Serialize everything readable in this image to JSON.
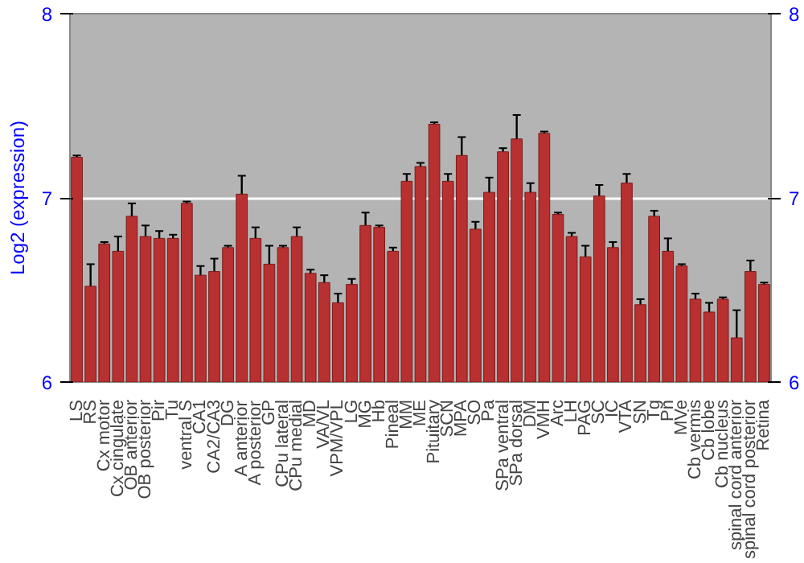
{
  "chart_data": {
    "type": "bar",
    "ylabel": "Log2 (expression)",
    "categories": [
      "LS",
      "RS",
      "Cx motor",
      "Cx cingulate",
      "OB anterior",
      "OB posterior",
      "Pir",
      "Tu",
      "ventral S",
      "CA1",
      "CA2/CA3",
      "DG",
      "A anterior",
      "A posterior",
      "GP",
      "CPu lateral",
      "CPu medial",
      "MD",
      "VA/VL",
      "VPM/VPL",
      "LG",
      "MG",
      "Hb",
      "Pineal",
      "MM",
      "ME",
      "Pituitary",
      "SCN",
      "MPA",
      "SO",
      "Pa",
      "SPa ventral",
      "SPa dorsal",
      "DM",
      "VMH",
      "Arc",
      "LH",
      "PAG",
      "SC",
      "IC",
      "VTA",
      "SN",
      "Tg",
      "Pn",
      "MVe",
      "Cb vermis",
      "Cb lobe",
      "Cb nucleus",
      "spinal cord anterior",
      "spinal cord posterior",
      "Retina"
    ],
    "values": [
      7.22,
      6.52,
      6.75,
      6.71,
      6.9,
      6.79,
      6.78,
      6.78,
      6.97,
      6.58,
      6.6,
      6.73,
      7.02,
      6.78,
      6.64,
      6.73,
      6.79,
      6.59,
      6.54,
      6.43,
      6.53,
      6.85,
      6.84,
      6.71,
      7.09,
      7.17,
      7.4,
      7.09,
      7.23,
      6.83,
      7.03,
      7.25,
      7.32,
      7.03,
      7.35,
      6.91,
      6.79,
      6.68,
      7.01,
      6.73,
      7.08,
      6.42,
      6.9,
      6.71,
      6.63,
      6.45,
      6.38,
      6.45,
      6.24,
      6.6,
      6.53
    ],
    "errors": [
      0.01,
      0.12,
      0.01,
      0.08,
      0.07,
      0.06,
      0.04,
      0.02,
      0.01,
      0.05,
      0.07,
      0.01,
      0.1,
      0.06,
      0.1,
      0.01,
      0.05,
      0.02,
      0.04,
      0.05,
      0.03,
      0.07,
      0.01,
      0.02,
      0.04,
      0.02,
      0.01,
      0.04,
      0.1,
      0.04,
      0.08,
      0.02,
      0.13,
      0.05,
      0.01,
      0.01,
      0.02,
      0.06,
      0.06,
      0.03,
      0.05,
      0.03,
      0.03,
      0.07,
      0.01,
      0.03,
      0.05,
      0.01,
      0.15,
      0.06,
      0.01
    ],
    "color": "#b83030",
    "ylim": [
      6,
      8
    ],
    "yticks": [
      6,
      7,
      8
    ],
    "y2lim": [
      6,
      8
    ],
    "y2ticks": [
      6,
      7,
      8
    ],
    "grid": "y"
  }
}
